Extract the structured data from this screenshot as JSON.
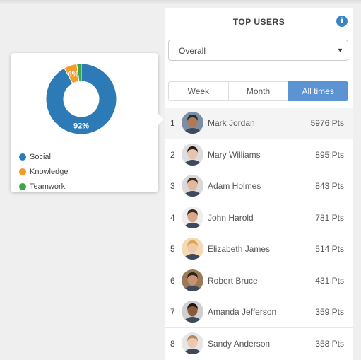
{
  "panel": {
    "title": "TOP USERS",
    "info_icon": "info-icon",
    "select": {
      "value": "Overall"
    },
    "tabs": [
      {
        "label": "Week",
        "active": false
      },
      {
        "label": "Month",
        "active": false
      },
      {
        "label": "All times",
        "active": true
      }
    ],
    "users": [
      {
        "rank": "1",
        "name": "Mark Jordan",
        "points": "5976 Pts",
        "avatar": {
          "skin": "#b07a5a",
          "hair": "#2b2b2b",
          "bg": "#7a8fa6"
        }
      },
      {
        "rank": "2",
        "name": "Mary Williams",
        "points": "895 Pts",
        "avatar": {
          "skin": "#e8c4ae",
          "hair": "#2a1c16",
          "bg": "#dddddd"
        }
      },
      {
        "rank": "3",
        "name": "Adam Holmes",
        "points": "843 Pts",
        "avatar": {
          "skin": "#e2b79c",
          "hair": "#3a2a22",
          "bg": "#d9d9d9"
        }
      },
      {
        "rank": "4",
        "name": "John Harold",
        "points": "781 Pts",
        "avatar": {
          "skin": "#d8a88a",
          "hair": "#3b2a1e",
          "bg": "#eeeeee"
        }
      },
      {
        "rank": "5",
        "name": "Elizabeth James",
        "points": "514 Pts",
        "avatar": {
          "skin": "#f0c9a6",
          "hair": "#d9a44a",
          "bg": "#f3d9b6"
        }
      },
      {
        "rank": "6",
        "name": "Robert Bruce",
        "points": "431 Pts",
        "avatar": {
          "skin": "#c99272",
          "hair": "#2d2118",
          "bg": "#9b7a5a"
        }
      },
      {
        "rank": "7",
        "name": "Amanda Jefferson",
        "points": "359 Pts",
        "avatar": {
          "skin": "#8a5a3e",
          "hair": "#1e140f",
          "bg": "#cfcfcf"
        }
      },
      {
        "rank": "8",
        "name": "Sandy Anderson",
        "points": "358 Pts",
        "avatar": {
          "skin": "#ecc8ae",
          "hair": "#b48a5e",
          "bg": "#e6e6e6"
        }
      }
    ]
  },
  "chart_data": {
    "type": "pie",
    "donut": true,
    "categories": [
      "Social",
      "Knowledge",
      "Teamwork"
    ],
    "values": [
      92,
      6,
      2
    ],
    "colors": [
      "#2c7bb6",
      "#f39c2a",
      "#3da64a"
    ],
    "data_labels": [
      "92%",
      "6%",
      ""
    ],
    "legend": "bottom-left"
  }
}
